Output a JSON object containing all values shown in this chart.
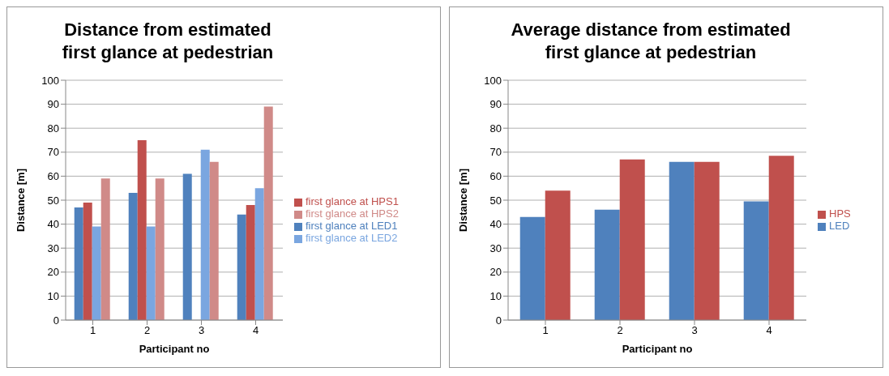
{
  "chart_data": [
    {
      "type": "bar",
      "title": "Distance from estimated first glance at pedestrian",
      "xlabel": "Participant no",
      "ylabel": "Distance [m]",
      "categories": [
        "1",
        "2",
        "3",
        "4"
      ],
      "series": [
        {
          "name": "first glance at LED1",
          "color": "#4f81bd",
          "values": [
            47,
            53,
            61,
            44
          ]
        },
        {
          "name": "first glance at HPS1",
          "color": "#c0504d",
          "values": [
            49,
            75,
            null,
            48
          ]
        },
        {
          "name": "first glance at LED2",
          "color": "#7aa6e0",
          "values": [
            39,
            39,
            71,
            55
          ]
        },
        {
          "name": "first glance at HPS2",
          "color": "#d08a88",
          "values": [
            59,
            59,
            66,
            89
          ]
        }
      ],
      "ylim": [
        0,
        100
      ],
      "yticks": [
        0,
        10,
        20,
        30,
        40,
        50,
        60,
        70,
        80,
        90,
        100
      ],
      "grid": "y",
      "legend": "right"
    },
    {
      "type": "bar",
      "title": "Average distance from estimated first glance at pedestrian",
      "xlabel": "Participant no",
      "ylabel": "Distance [m]",
      "categories": [
        "1",
        "2",
        "3",
        "4"
      ],
      "series": [
        {
          "name": "LED",
          "color": "#4f81bd",
          "values": [
            43,
            46,
            66,
            49.5
          ]
        },
        {
          "name": "HPS",
          "color": "#c0504d",
          "values": [
            54,
            67,
            66,
            68.5
          ]
        }
      ],
      "ylim": [
        0,
        100
      ],
      "yticks": [
        0,
        10,
        20,
        30,
        40,
        50,
        60,
        70,
        80,
        90,
        100
      ],
      "grid": "y",
      "legend": "right"
    }
  ]
}
